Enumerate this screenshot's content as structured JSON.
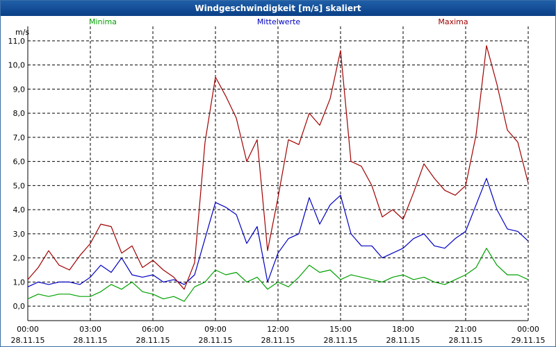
{
  "window": {
    "title": "Windgeschwindigkeit [m/s] skaliert"
  },
  "chart_data": {
    "type": "line",
    "title": "Windgeschwindigkeit [m/s] skaliert",
    "ylabel": "m/s",
    "xlabel": "",
    "ylim": [
      -0.6,
      11.6
    ],
    "xlim": [
      0,
      24
    ],
    "grid": true,
    "y_ticks": [
      0,
      1,
      2,
      3,
      4,
      5,
      6,
      7,
      8,
      9,
      10,
      11
    ],
    "y_tick_labels": [
      "0,0",
      "1,0",
      "2,0",
      "3,0",
      "4,0",
      "5,0",
      "6,0",
      "7,0",
      "8,0",
      "9,0",
      "10,0",
      "11,0"
    ],
    "x_ticks": [
      {
        "t": 0,
        "time": "00:00",
        "date": "28.11.15"
      },
      {
        "t": 3,
        "time": "03:00",
        "date": "28.11.15"
      },
      {
        "t": 6,
        "time": "06:00",
        "date": "28.11.15"
      },
      {
        "t": 9,
        "time": "09:00",
        "date": "28.11.15"
      },
      {
        "t": 12,
        "time": "12:00",
        "date": "28.11.15"
      },
      {
        "t": 15,
        "time": "15:00",
        "date": "28.11.15"
      },
      {
        "t": 18,
        "time": "18:00",
        "date": "28.11.15"
      },
      {
        "t": 21,
        "time": "21:00",
        "date": "28.11.15"
      },
      {
        "t": 24,
        "time": "00:00",
        "date": "29.11.15"
      }
    ],
    "x": [
      0,
      0.5,
      1,
      1.5,
      2,
      2.5,
      3,
      3.5,
      4,
      4.5,
      5,
      5.5,
      6,
      6.5,
      7,
      7.5,
      8,
      8.5,
      9,
      9.5,
      10,
      10.5,
      11,
      11.5,
      12,
      12.5,
      13,
      13.5,
      14,
      14.5,
      15,
      15.5,
      16,
      16.5,
      17,
      17.5,
      18,
      18.5,
      19,
      19.5,
      20,
      20.5,
      21,
      21.5,
      22,
      22.5,
      23,
      23.5,
      24
    ],
    "series": [
      {
        "name": "Minima",
        "color": "#00a000",
        "values": [
          0.3,
          0.5,
          0.4,
          0.5,
          0.5,
          0.4,
          0.4,
          0.6,
          0.9,
          0.7,
          1.0,
          0.6,
          0.5,
          0.3,
          0.4,
          0.2,
          0.8,
          1.0,
          1.5,
          1.3,
          1.4,
          1.0,
          1.2,
          0.7,
          1.0,
          0.8,
          1.2,
          1.7,
          1.4,
          1.5,
          1.1,
          1.3,
          1.2,
          1.1,
          1.0,
          1.2,
          1.3,
          1.1,
          1.2,
          1.0,
          0.9,
          1.1,
          1.3,
          1.6,
          2.4,
          1.7,
          1.3,
          1.3,
          1.1
        ]
      },
      {
        "name": "Mittelwerte",
        "color": "#0000c0",
        "values": [
          0.8,
          1.0,
          0.9,
          1.0,
          1.0,
          0.9,
          1.2,
          1.7,
          1.4,
          2.0,
          1.3,
          1.2,
          1.3,
          1.0,
          1.1,
          0.9,
          1.3,
          2.8,
          4.3,
          4.1,
          3.8,
          2.6,
          3.3,
          1.0,
          2.2,
          2.8,
          3.0,
          4.5,
          3.4,
          4.2,
          4.6,
          3.0,
          2.5,
          2.5,
          2.0,
          2.2,
          2.4,
          2.8,
          3.0,
          2.5,
          2.4,
          2.8,
          3.1,
          4.2,
          5.3,
          4.0,
          3.2,
          3.1,
          2.7
        ]
      },
      {
        "name": "Maxima",
        "color": "#a00000",
        "values": [
          1.1,
          1.6,
          2.3,
          1.7,
          1.5,
          2.1,
          2.6,
          3.4,
          3.3,
          2.2,
          2.5,
          1.6,
          1.9,
          1.5,
          1.2,
          0.7,
          1.8,
          6.8,
          9.5,
          8.7,
          7.8,
          6.0,
          6.9,
          2.3,
          4.5,
          6.9,
          6.7,
          8.0,
          7.5,
          8.6,
          10.6,
          6.0,
          5.8,
          5.0,
          3.7,
          4.0,
          3.6,
          4.7,
          5.9,
          5.3,
          4.8,
          4.6,
          5.0,
          7.1,
          10.8,
          9.2,
          7.3,
          6.8,
          5.1
        ]
      }
    ]
  }
}
